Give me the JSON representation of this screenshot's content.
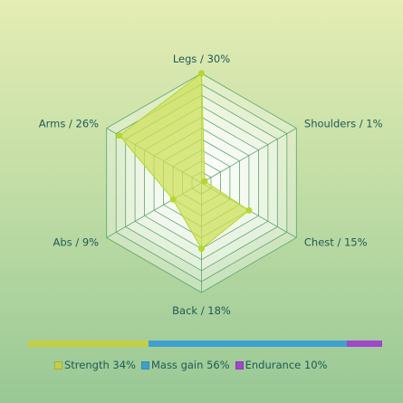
{
  "chart_data": {
    "type": "radar",
    "axes": [
      {
        "label": "Legs / 30%",
        "value": 30
      },
      {
        "label": "Shoulders / 1%",
        "value": 1
      },
      {
        "label": "Chest / 15%",
        "value": 15
      },
      {
        "label": "Back / 18%",
        "value": 18
      },
      {
        "label": "Abs / 9%",
        "value": 9
      },
      {
        "label": "Arms / 26%",
        "value": 26
      }
    ],
    "range": [
      0,
      30
    ],
    "rings": 10,
    "fill_color": "#cde05a",
    "stroke_color": "#b4d82c",
    "grid_color": "#5aa86a",
    "split": [
      {
        "label": "Strength 34%",
        "value": 34,
        "color": "#c4cf45"
      },
      {
        "label": "Mass gain 56%",
        "value": 56,
        "color": "#3fa0cf"
      },
      {
        "label": "Endurance 10%",
        "value": 10,
        "color": "#a047cc"
      }
    ]
  }
}
